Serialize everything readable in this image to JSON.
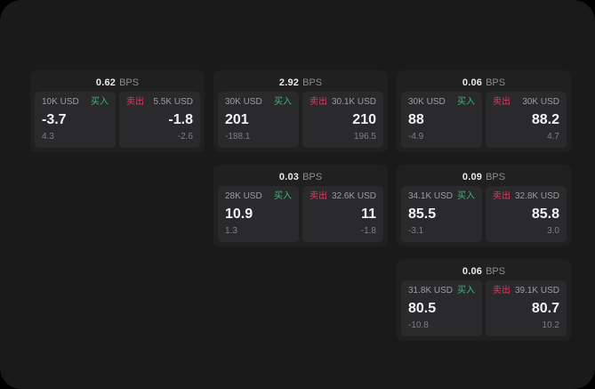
{
  "colors": {
    "page_background": "#000000",
    "window_background": "#1a1a1b",
    "card_background": "#202021",
    "panel_background": "#2a2a2c",
    "buy_green": "#3eb572",
    "sell_red": "#dd3a5e",
    "value_text": "#f2f2f4",
    "muted_text": "#9d9da1",
    "delta_text": "#7f7f84"
  },
  "labels": {
    "bps_unit": "BPS",
    "buy": "买入",
    "sell": "卖出"
  },
  "cards": [
    {
      "bps": "0.62",
      "buy": {
        "size": "10K USD",
        "value": "-3.7",
        "delta": "4.3"
      },
      "sell": {
        "size": "5.5K USD",
        "value": "-1.8",
        "delta": "-2.6"
      }
    },
    {
      "bps": "2.92",
      "buy": {
        "size": "30K USD",
        "value": "201",
        "delta": "-188.1"
      },
      "sell": {
        "size": "30.1K USD",
        "value": "210",
        "delta": "196.5"
      }
    },
    {
      "bps": "0.06",
      "buy": {
        "size": "30K USD",
        "value": "88",
        "delta": "-4.9"
      },
      "sell": {
        "size": "30K USD",
        "value": "88.2",
        "delta": "4.7"
      }
    },
    {
      "bps": "0.03",
      "buy": {
        "size": "28K USD",
        "value": "10.9",
        "delta": "1.3"
      },
      "sell": {
        "size": "32.6K USD",
        "value": "11",
        "delta": "-1.8"
      }
    },
    {
      "bps": "0.09",
      "buy": {
        "size": "34.1K USD",
        "value": "85.5",
        "delta": "-3.1"
      },
      "sell": {
        "size": "32.8K USD",
        "value": "85.8",
        "delta": "3.0"
      }
    },
    {
      "bps": "0.06",
      "buy": {
        "size": "31.8K USD",
        "value": "80.5",
        "delta": "-10.8"
      },
      "sell": {
        "size": "39.1K USD",
        "value": "80.7",
        "delta": "10.2"
      }
    }
  ]
}
